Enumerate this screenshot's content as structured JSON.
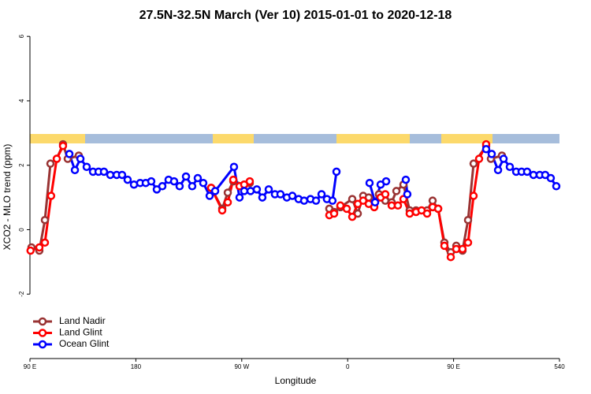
{
  "chart_data": {
    "type": "line",
    "title": "27.5N-32.5N March (Ver 10)   2015-01-01 to 2020-12-18",
    "x_label": "Longitude",
    "y_label": "XCO2 - MLO trend (ppm)",
    "xlim": [
      90,
      540
    ],
    "xticks": [
      {
        "value": 90,
        "label": "90 E"
      },
      180,
      {
        "value": 270,
        "label": "90 W"
      },
      {
        "value": 360,
        "label": "0"
      },
      {
        "value": 450,
        "label": "90 E"
      },
      540
    ],
    "ylim": [
      -4,
      6.2
    ],
    "yticks": [
      -2,
      0,
      2,
      4,
      6
    ],
    "legend": "bottom-left",
    "series": [
      {
        "name": "Land Nadir",
        "color": "#993333",
        "x": [
          91.3,
          98,
          102.7,
          107.4,
          112.8,
          118.1,
          122.1,
          131.5,
          null,
          244,
          253.4,
          258.1,
          262.8,
          272.1,
          276.8,
          null,
          344.4,
          348.5,
          353.8,
          363.9,
          368.6,
          373.2,
          377.9,
          382.6,
          386.6,
          392,
          397.4,
          401.4,
          407.4,
          412.7,
          418.1,
          427.5,
          432.2,
          436.9,
          442.2,
          447.6,
          452.3,
          457.6,
          462.3,
          467,
          477.7,
          481.7,
          491.1
        ],
        "values": [
          -0.55,
          -0.65,
          0.3,
          2.05,
          2.2,
          2.65,
          2.2,
          2.3,
          null,
          1.3,
          0.65,
          1.15,
          1.5,
          1.4,
          1.45,
          null,
          0.65,
          0.55,
          0.7,
          0.95,
          0.5,
          1.05,
          1.0,
          0.8,
          1.1,
          0.9,
          0.85,
          1.2,
          1.4,
          0.6,
          0.6,
          0.6,
          0.9,
          0.65,
          -0.4,
          -0.7,
          -0.5,
          -0.65,
          0.3,
          2.05,
          2.6,
          2.2,
          2.3
        ]
      },
      {
        "name": "Land Glint",
        "color": "#ff0000",
        "x": [
          90.5,
          98,
          102.7,
          108,
          112.8,
          118.1,
          null,
          244,
          253.4,
          258.1,
          262.8,
          268.1,
          272.1,
          276.8,
          null,
          344.4,
          348.5,
          353.8,
          359.2,
          363.9,
          368.6,
          373.2,
          377.9,
          382.6,
          388,
          392,
          397.4,
          402.7,
          407.4,
          412.7,
          418.1,
          422.8,
          427.5,
          432.2,
          436.9,
          442.2,
          447.6,
          452.3,
          457.6,
          462.3,
          467,
          471.7,
          477.7
        ],
        "values": [
          -0.65,
          -0.55,
          -0.4,
          1.05,
          2.2,
          2.6,
          null,
          1.3,
          0.6,
          0.85,
          1.55,
          1.35,
          1.4,
          1.5,
          null,
          0.45,
          0.5,
          0.75,
          0.65,
          0.4,
          0.8,
          0.9,
          0.8,
          0.7,
          1.0,
          1.1,
          0.75,
          0.75,
          0.95,
          0.5,
          0.55,
          0.6,
          0.5,
          0.7,
          0.65,
          -0.5,
          -0.85,
          -0.6,
          -0.6,
          -0.4,
          1.05,
          2.2,
          2.65
        ]
      },
      {
        "name": "Ocean Glint",
        "color": "#0000ff",
        "x": [
          123.5,
          128.2,
          132.9,
          138.2,
          143.6,
          148.3,
          152.9,
          158.3,
          163.7,
          168.3,
          173,
          178.4,
          183.7,
          188.4,
          193.1,
          197.8,
          202.5,
          207.8,
          212.5,
          217.2,
          222.6,
          227.9,
          232.6,
          237.3,
          242.7,
          247.4,
          263.4,
          268.1,
          272.1,
          277.5,
          282.8,
          287.5,
          292.9,
          298.2,
          302.9,
          308.3,
          313,
          318.3,
          323,
          328.4,
          333.1,
          337.8,
          342.4,
          347.1,
          350.5,
          null,
          378.6,
          383.3,
          388,
          392.7,
          null,
          409.4,
          410.7,
          null,
          477.7,
          482.4,
          487.8,
          492.5,
          497.8,
          503.2,
          507.8,
          512.5,
          517.9,
          523.2,
          527.9,
          532.6,
          537.3
        ],
        "values": [
          2.35,
          1.85,
          2.2,
          1.95,
          1.8,
          1.8,
          1.8,
          1.7,
          1.7,
          1.7,
          1.55,
          1.4,
          1.45,
          1.45,
          1.5,
          1.25,
          1.35,
          1.55,
          1.5,
          1.35,
          1.65,
          1.35,
          1.6,
          1.45,
          1.05,
          1.2,
          1.95,
          1.0,
          1.2,
          1.2,
          1.25,
          1.0,
          1.25,
          1.1,
          1.1,
          1.0,
          1.05,
          0.95,
          0.9,
          0.95,
          0.9,
          1.1,
          0.95,
          0.9,
          1.8,
          null,
          1.45,
          0.85,
          1.4,
          1.5,
          null,
          1.55,
          1.1,
          null,
          2.5,
          2.35,
          1.85,
          2.2,
          1.95,
          1.8,
          1.8,
          1.8,
          1.7,
          1.7,
          1.7,
          1.6,
          1.35
        ]
      }
    ]
  }
}
